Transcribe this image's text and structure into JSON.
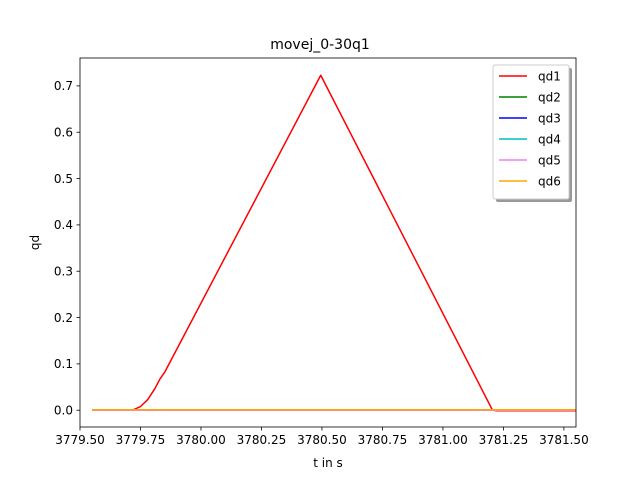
{
  "chart_data": {
    "type": "line",
    "title": "movej_0-30q1",
    "xlabel": "t in s",
    "ylabel": "qd",
    "xlim": [
      3779.5,
      3781.55
    ],
    "ylim": [
      -0.0362,
      0.7602
    ],
    "xticks": [
      3779.5,
      3779.75,
      3780.0,
      3780.25,
      3780.5,
      3780.75,
      3781.0,
      3781.25,
      3781.5
    ],
    "xtick_labels": [
      "3779.50",
      "3779.75",
      "3780.00",
      "3780.25",
      "3780.50",
      "3780.75",
      "3781.00",
      "3781.25",
      "3781.50"
    ],
    "yticks": [
      0.0,
      0.1,
      0.2,
      0.3,
      0.4,
      0.5,
      0.6,
      0.7
    ],
    "ytick_labels": [
      "0.0",
      "0.1",
      "0.2",
      "0.3",
      "0.4",
      "0.5",
      "0.6",
      "0.7"
    ],
    "grid": false,
    "legend_position": "top-right",
    "series": [
      {
        "name": "qd1",
        "color": "#ff0000",
        "x": [
          3779.55,
          3779.7,
          3779.72,
          3779.75,
          3779.78,
          3779.81,
          3779.83,
          3779.85,
          3780.495,
          3781.205,
          3781.22,
          3781.55
        ],
        "y": [
          0.0,
          0.0,
          0.001,
          0.008,
          0.023,
          0.047,
          0.067,
          0.082,
          0.723,
          0.0,
          -0.001,
          -0.001
        ]
      },
      {
        "name": "qd2",
        "color": "#008000",
        "x": [
          3779.55,
          3781.55
        ],
        "y": [
          0.0,
          0.0
        ]
      },
      {
        "name": "qd3",
        "color": "#0000ff",
        "x": [
          3779.55,
          3781.55
        ],
        "y": [
          0.0,
          0.0
        ]
      },
      {
        "name": "qd4",
        "color": "#00bfbf",
        "x": [
          3779.55,
          3781.55
        ],
        "y": [
          0.0,
          0.0
        ]
      },
      {
        "name": "qd5",
        "color": "#ee82ee",
        "x": [
          3779.55,
          3781.55
        ],
        "y": [
          0.0,
          0.0
        ]
      },
      {
        "name": "qd6",
        "color": "#ffa500",
        "x": [
          3779.55,
          3781.55
        ],
        "y": [
          0.001,
          0.001
        ]
      }
    ]
  }
}
